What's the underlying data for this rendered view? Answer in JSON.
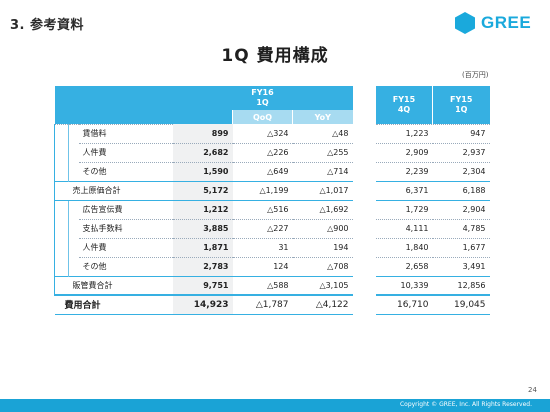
{
  "section_title": "3. 参考資料",
  "logo_text": "GREE",
  "slide_title": "1Q 費用構成",
  "unit_note": "(百万円)",
  "main_header": {
    "fy16_line1": "FY16",
    "fy16_line2": "1Q",
    "qoq": "QoQ",
    "yoy": "YoY"
  },
  "prior_header": {
    "col1_line1": "FY15",
    "col1_line2": "4Q",
    "col2_line1": "FY15",
    "col2_line2": "1Q"
  },
  "rows": [
    {
      "label": "賃借料",
      "fy16_1q": "899",
      "qoq": "△324",
      "yoy": "△48",
      "fy15_4q": "1,223",
      "fy15_1q": "947"
    },
    {
      "label": "人件費",
      "fy16_1q": "2,682",
      "qoq": "△226",
      "yoy": "△255",
      "fy15_4q": "2,909",
      "fy15_1q": "2,937"
    },
    {
      "label": "その他",
      "fy16_1q": "1,590",
      "qoq": "△649",
      "yoy": "△714",
      "fy15_4q": "2,239",
      "fy15_1q": "2,304"
    },
    {
      "label": "売上原価合計",
      "fy16_1q": "5,172",
      "qoq": "△1,199",
      "yoy": "△1,017",
      "fy15_4q": "6,371",
      "fy15_1q": "6,188"
    },
    {
      "label": "広告宣伝費",
      "fy16_1q": "1,212",
      "qoq": "△516",
      "yoy": "△1,692",
      "fy15_4q": "1,729",
      "fy15_1q": "2,904"
    },
    {
      "label": "支払手数料",
      "fy16_1q": "3,885",
      "qoq": "△227",
      "yoy": "△900",
      "fy15_4q": "4,111",
      "fy15_1q": "4,785"
    },
    {
      "label": "人件費",
      "fy16_1q": "1,871",
      "qoq": "31",
      "yoy": "194",
      "fy15_4q": "1,840",
      "fy15_1q": "1,677"
    },
    {
      "label": "その他",
      "fy16_1q": "2,783",
      "qoq": "124",
      "yoy": "△708",
      "fy15_4q": "2,658",
      "fy15_1q": "3,491"
    },
    {
      "label": "販管費合計",
      "fy16_1q": "9,751",
      "qoq": "△588",
      "yoy": "△3,105",
      "fy15_4q": "10,339",
      "fy15_1q": "12,856"
    },
    {
      "label": "費用合計",
      "fy16_1q": "14,923",
      "qoq": "△1,787",
      "yoy": "△4,122",
      "fy15_4q": "16,710",
      "fy15_1q": "19,045"
    }
  ],
  "page_number": "24",
  "copyright": "Copyright © GREE, Inc. All Rights Reserved.",
  "colors": {
    "accent": "#36b0e2",
    "accent_light": "#a7dbf1",
    "footer": "#1aa3d6",
    "logo": "#1aa9dc"
  }
}
